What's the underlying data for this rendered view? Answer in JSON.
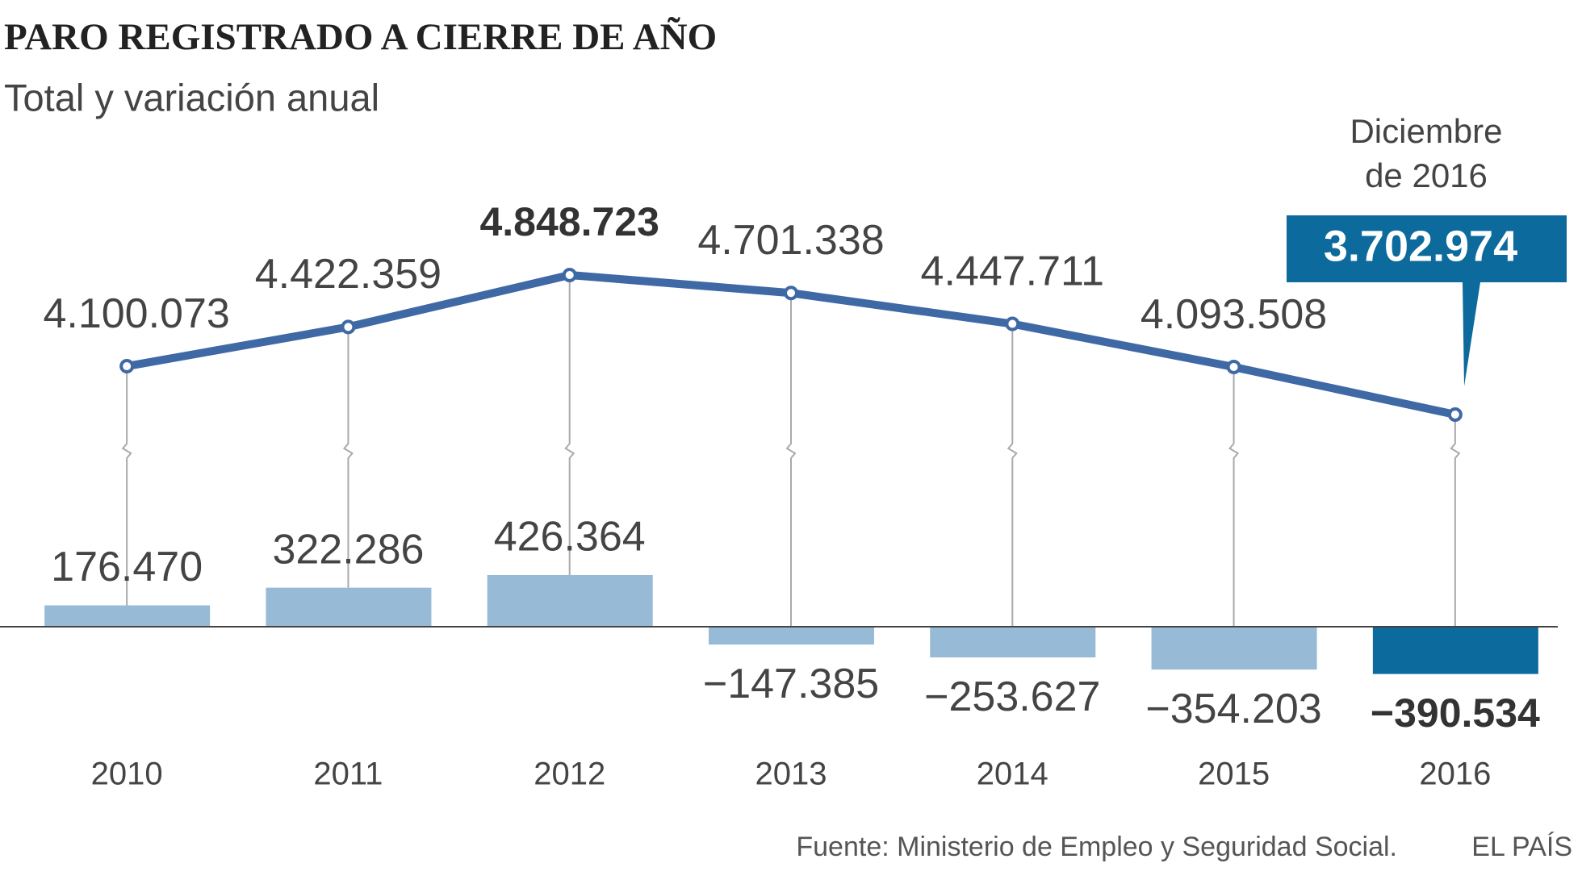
{
  "title": "PARO REGISTRADO A CIERRE DE AÑO",
  "subtitle": "Total y variación anual",
  "source": "Fuente: Ministerio de Empleo y Seguridad Social.",
  "brand": "EL PAÍS",
  "chart_data": [
    {
      "type": "line",
      "color": "#3f69a5",
      "values": [
        4100073,
        4422359,
        4848723,
        4701338,
        4447711,
        4093508,
        3702974
      ],
      "value_labels": [
        "4.100.073",
        "4.422.359",
        "4.848.723",
        "4.701.338",
        "4.447.711",
        "4.093.508",
        "3.702.974"
      ],
      "label_styles": [
        "plain",
        "plain",
        "bold",
        "plain",
        "plain",
        "plain",
        "boxed"
      ],
      "box_color": "#0d6a9c",
      "annotation": [
        "Diciembre",
        "de 2016"
      ]
    },
    {
      "type": "bar",
      "categories": [
        "2010",
        "2011",
        "2012",
        "2013",
        "2014",
        "2015",
        "2016"
      ],
      "values": [
        176470,
        322286,
        426364,
        -147385,
        -253627,
        -354203,
        -390534
      ],
      "value_labels": [
        "176.470",
        "322.286",
        "426.364",
        "−147.385",
        "−253.627",
        "−354.203",
        "−390.534"
      ],
      "colors": [
        "#97bad6",
        "#97bad6",
        "#97bad6",
        "#97bad6",
        "#97bad6",
        "#97bad6",
        "#0d6a9c"
      ],
      "label_styles": [
        "plain",
        "plain",
        "plain",
        "plain",
        "plain",
        "plain",
        "bold"
      ]
    }
  ]
}
